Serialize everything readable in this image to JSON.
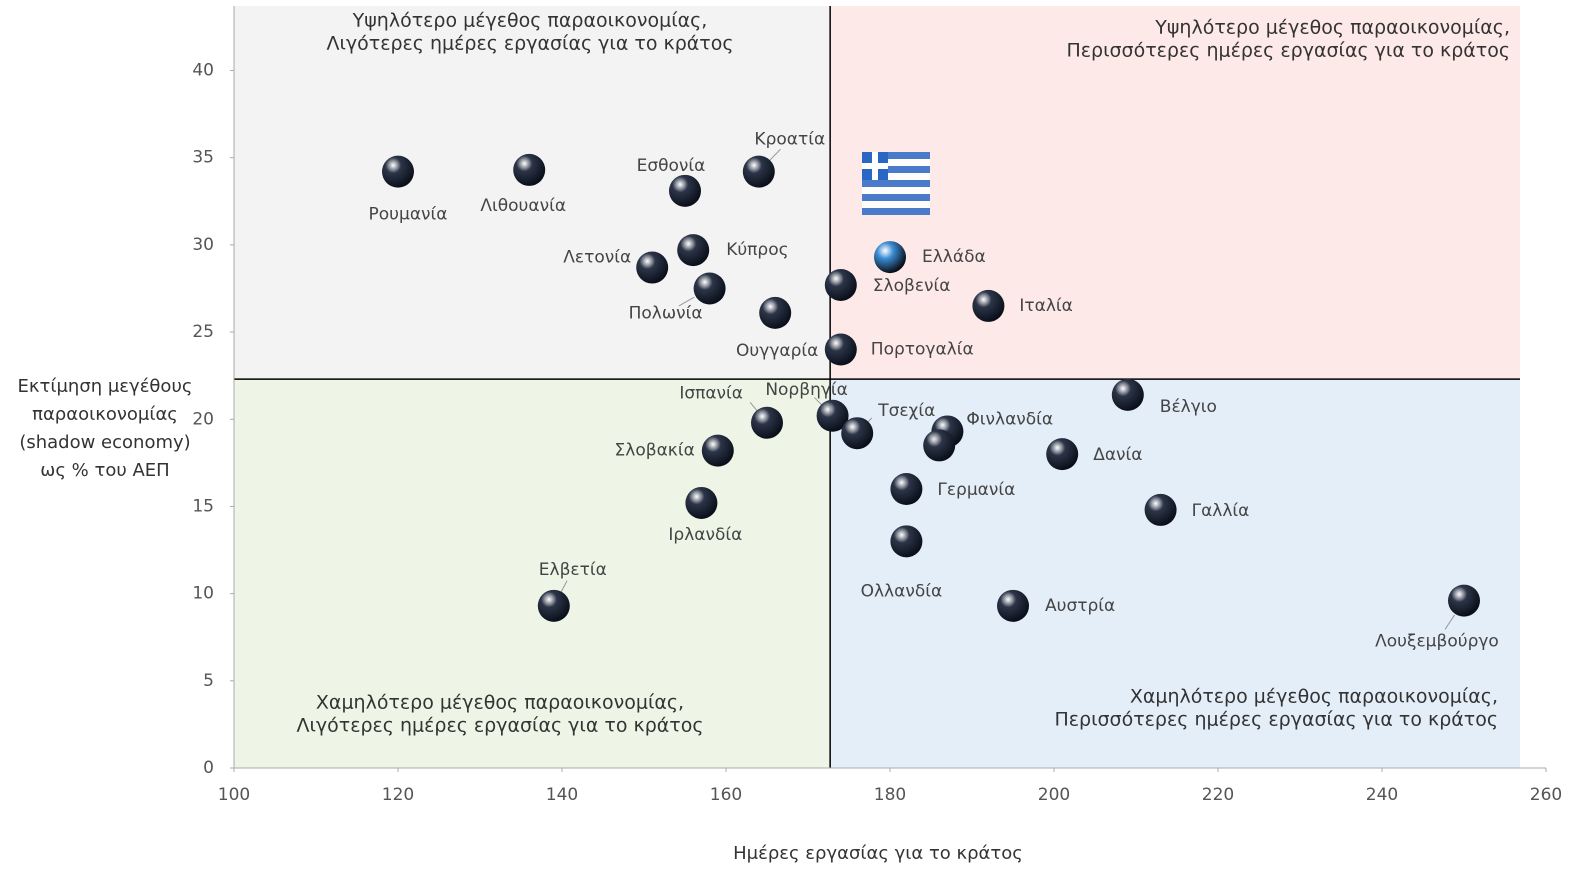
{
  "chart_data": {
    "type": "scatter",
    "x_label": "Ημέρες εργασίας για το κράτος",
    "y_label": [
      "Εκτίμηση μεγέθους",
      "παραοικονομίας",
      "(shadow economy)",
      "ως % του ΑΕΠ"
    ],
    "xlim": [
      100,
      260
    ],
    "xticks": [
      100,
      120,
      140,
      160,
      180,
      200,
      220,
      240,
      260
    ],
    "ylim": [
      0,
      43.7
    ],
    "yticks": [
      0,
      5,
      10,
      15,
      20,
      25,
      30,
      35,
      40
    ],
    "thresholds": {
      "x": 172.7,
      "y": 22.3
    },
    "quadrants": {
      "top_left": {
        "text": [
          "Υψηλότερο μέγεθος παραοικονομίας,",
          "Λιγότερες ημέρες εργασίας για το κράτος"
        ],
        "color": "#f3f3f3"
      },
      "top_right": {
        "text": [
          "Υψηλότερο μέγεθος παραοικονομίας,",
          "Περισσότερες ημέρες εργασίας για το κράτος"
        ],
        "color": "#fde9e7"
      },
      "bottom_left": {
        "text": [
          "Χαμηλότερο μέγεθος παραοικονομίας,",
          "Λιγότερες ημέρες εργασίας για το κράτος"
        ],
        "color": "#eef5e6"
      },
      "bottom_right": {
        "text": [
          "Χαμηλότερο  μέγεθος παραοικονομίας,",
          "Περισσότερες ημέρες εργασίας για το κράτος"
        ],
        "color": "#e4eef8"
      }
    },
    "labels": [
      "Ρουμανία",
      "Λιθουανία",
      "Εσθονία",
      "Κροατία",
      "Κύπρος",
      "Λετονία",
      "Πολωνία",
      "Ουγγαρία",
      "Ελλάδα",
      "Σλοβενία",
      "Ιταλία",
      "Πορτογαλία",
      "Ισπανία",
      "Νορβηγία",
      "Τσεχία",
      "Φινλανδία",
      null,
      "Σλοβακία",
      "Ιρλανδία",
      "Ελβετία",
      "Γερμανία",
      "Ολλανδία",
      "Αυστρία",
      "Δανία",
      "Βέλγιο",
      "Γαλλία",
      "Λουξεμβούργο"
    ],
    "x": [
      120,
      136,
      155,
      164,
      156,
      151,
      158,
      166,
      180,
      174,
      192,
      174,
      165,
      173,
      176,
      187,
      186,
      159,
      157,
      139,
      182,
      182,
      195,
      201,
      209,
      213,
      250
    ],
    "values": [
      34.2,
      34.3,
      33.1,
      34.2,
      29.7,
      28.7,
      27.5,
      26.1,
      29.3,
      27.7,
      26.5,
      24.0,
      19.8,
      20.2,
      19.2,
      19.3,
      18.5,
      18.2,
      15.2,
      9.3,
      16.0,
      13.0,
      9.3,
      18.0,
      21.4,
      14.8,
      9.6
    ],
    "point_colors": [
      "#2c3548",
      "#2c3548",
      "#2c3548",
      "#2c3548",
      "#2c3548",
      "#2c3548",
      "#2c3548",
      "#2c3548",
      "#3d8fd6",
      "#2c3548",
      "#2c3548",
      "#2c3548",
      "#2c3548",
      "#2c3548",
      "#2c3548",
      "#2c3548",
      "#2c3548",
      "#2c3548",
      "#2c3548",
      "#2c3548",
      "#2c3548",
      "#2c3548",
      "#2c3548",
      "#2c3548",
      "#2c3548",
      "#2c3548",
      "#2c3548"
    ]
  }
}
